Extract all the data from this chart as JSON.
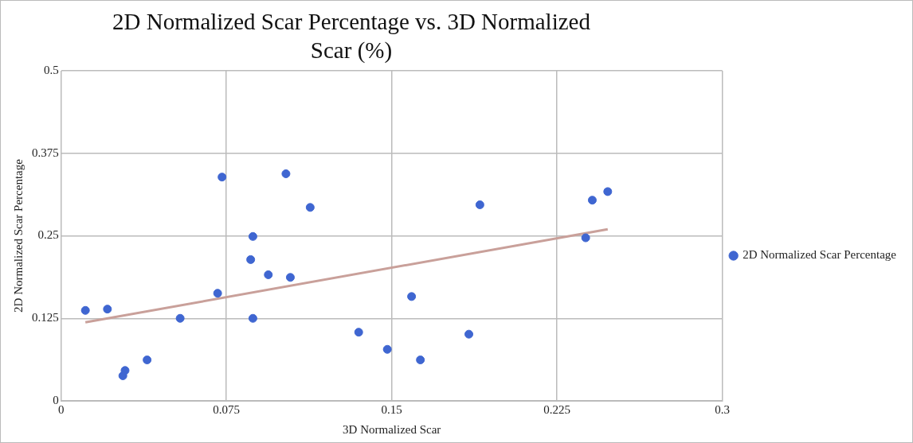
{
  "chart_data": {
    "type": "scatter",
    "title": "2D Normalized Scar Percentage vs. 3D Normalized Scar (%)",
    "xlabel": "3D Normalized Scar",
    "ylabel": "2D Normalized Scar Percentage",
    "xlim": [
      0,
      0.3
    ],
    "xticks": [
      0,
      0.075,
      0.15,
      0.225,
      0.3
    ],
    "ylim": [
      0,
      0.5
    ],
    "yticks": [
      0,
      0.125,
      0.25,
      0.375,
      0.5
    ],
    "grid": true,
    "legend": "right",
    "series": [
      {
        "name": "2D Normalized Scar Percentage",
        "color": "#3f66d1",
        "marker": "circle",
        "x": [
          0.011,
          0.021,
          0.028,
          0.029,
          0.039,
          0.054,
          0.071,
          0.073,
          0.086,
          0.087,
          0.087,
          0.094,
          0.102,
          0.104,
          0.113,
          0.135,
          0.148,
          0.159,
          0.163,
          0.185,
          0.19,
          0.238,
          0.241,
          0.248
        ],
        "values": [
          0.137,
          0.139,
          0.038,
          0.046,
          0.062,
          0.125,
          0.163,
          0.339,
          0.214,
          0.249,
          0.125,
          0.191,
          0.344,
          0.187,
          0.293,
          0.104,
          0.078,
          0.158,
          0.062,
          0.101,
          0.297,
          0.247,
          0.304,
          0.317
        ]
      },
      {
        "type": "line",
        "color": "#c9a09a",
        "marker": "none",
        "x": [
          0.011,
          0.248
        ],
        "values": [
          0.119,
          0.26
        ]
      }
    ]
  }
}
